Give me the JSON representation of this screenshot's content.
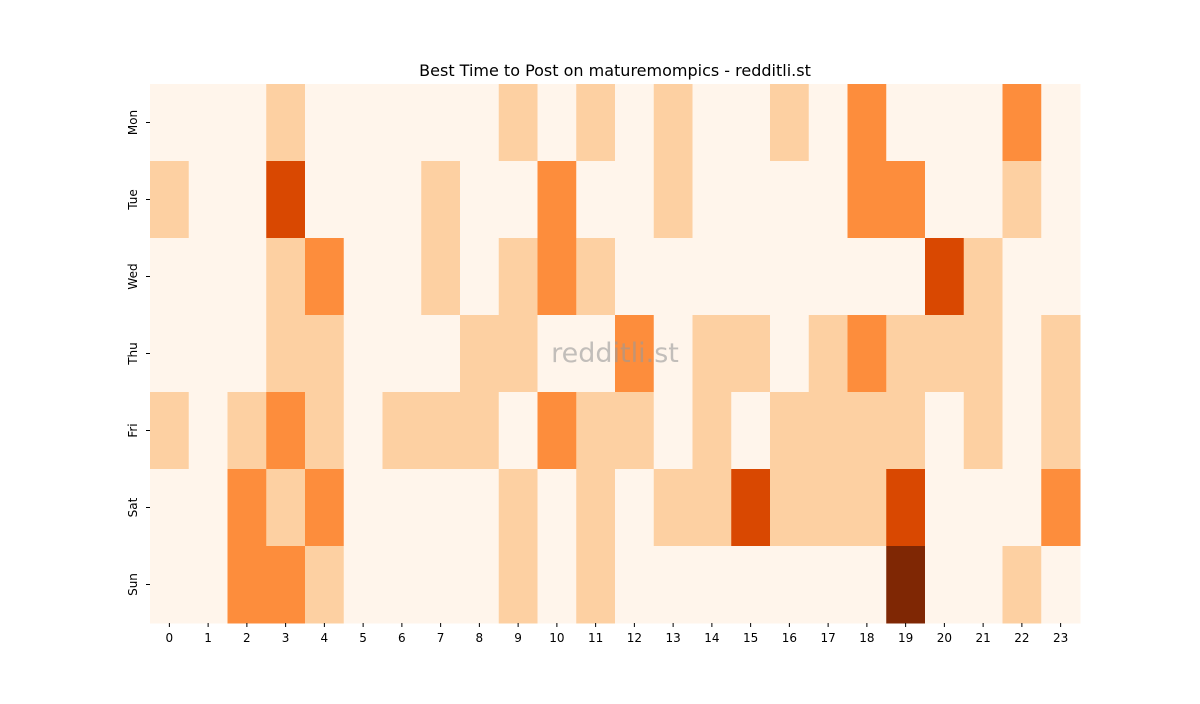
{
  "chart_data": {
    "type": "heatmap",
    "title": "Best Time to Post on maturemompics - redditli.st",
    "xlabel": "",
    "ylabel": "",
    "x_categories": [
      "0",
      "1",
      "2",
      "3",
      "4",
      "5",
      "6",
      "7",
      "8",
      "9",
      "10",
      "11",
      "12",
      "13",
      "14",
      "15",
      "16",
      "17",
      "18",
      "19",
      "20",
      "21",
      "22",
      "23"
    ],
    "y_categories": [
      "Mon",
      "Tue",
      "Wed",
      "Thu",
      "Fri",
      "Sat",
      "Sun"
    ],
    "value_range": [
      0,
      4
    ],
    "colormap": [
      "#fff5eb",
      "#fdd0a2",
      "#fd8d3c",
      "#d94801",
      "#7f2704"
    ],
    "values": [
      [
        0,
        0,
        0,
        1,
        0,
        0,
        0,
        0,
        0,
        1,
        0,
        1,
        0,
        1,
        0,
        0,
        1,
        0,
        2,
        0,
        0,
        0,
        2,
        0
      ],
      [
        1,
        0,
        0,
        3,
        0,
        0,
        0,
        1,
        0,
        0,
        2,
        0,
        0,
        1,
        0,
        0,
        0,
        0,
        2,
        2,
        0,
        0,
        1,
        0
      ],
      [
        0,
        0,
        0,
        1,
        2,
        0,
        0,
        1,
        0,
        1,
        2,
        1,
        0,
        0,
        0,
        0,
        0,
        0,
        0,
        0,
        3,
        1,
        0,
        0
      ],
      [
        0,
        0,
        0,
        1,
        1,
        0,
        0,
        0,
        1,
        1,
        0,
        0,
        2,
        0,
        1,
        1,
        0,
        1,
        2,
        1,
        1,
        1,
        0,
        1
      ],
      [
        1,
        0,
        1,
        2,
        1,
        0,
        1,
        1,
        1,
        0,
        2,
        1,
        1,
        0,
        1,
        0,
        1,
        1,
        1,
        1,
        0,
        1,
        0,
        1
      ],
      [
        0,
        0,
        2,
        1,
        2,
        0,
        0,
        0,
        0,
        1,
        0,
        1,
        0,
        1,
        1,
        3,
        1,
        1,
        1,
        3,
        0,
        0,
        0,
        2
      ],
      [
        0,
        0,
        2,
        2,
        1,
        0,
        0,
        0,
        0,
        1,
        0,
        1,
        0,
        0,
        0,
        0,
        0,
        0,
        0,
        4,
        0,
        0,
        1,
        0
      ]
    ],
    "watermark": "redditli.st",
    "legend": "none",
    "grid": false
  }
}
